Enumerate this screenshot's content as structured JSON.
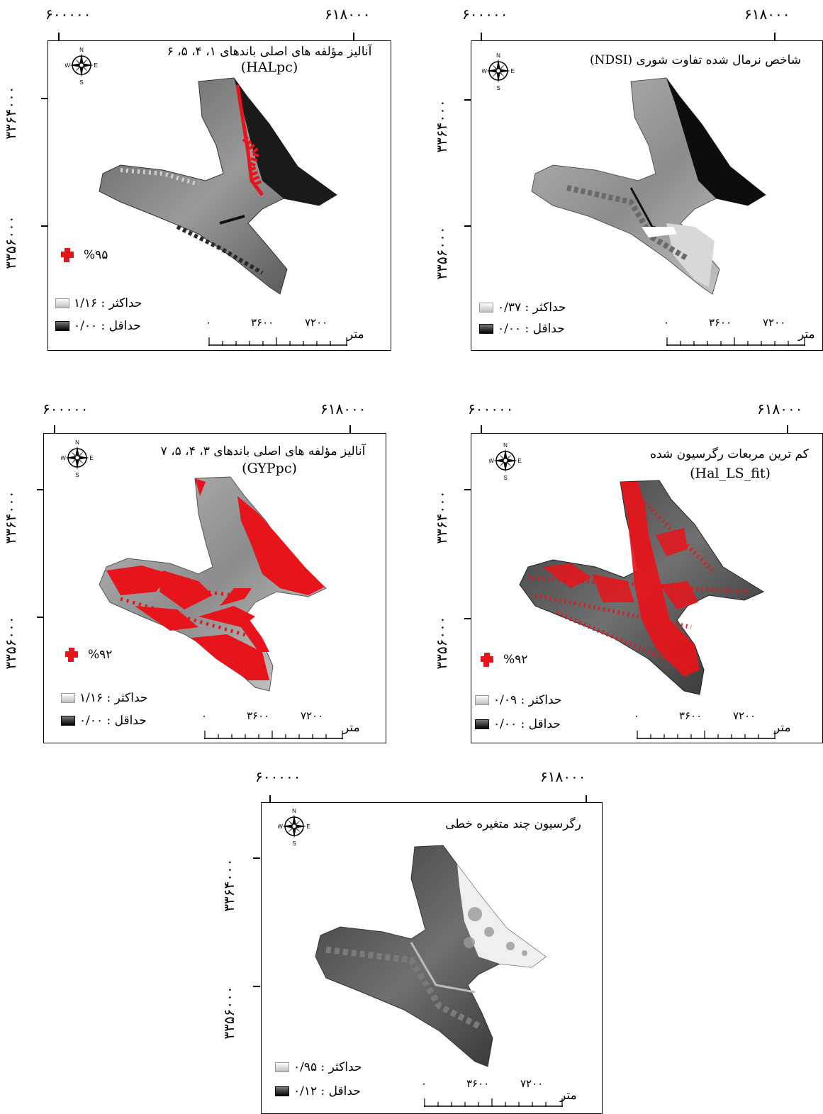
{
  "axis_labels": {
    "x_left": "۶۰۰۰۰۰",
    "x_right": "۶۱۸۰۰۰",
    "y_top": "۳۳۶۴۰۰۰",
    "y_bottom": "۳۳۵۶۰۰۰"
  },
  "compass": {
    "n": "N",
    "s": "S",
    "e": "E",
    "w": "W"
  },
  "scale": {
    "zero": "۰",
    "mid": "۳۶۰۰",
    "end": "۷۲۰۰",
    "unit": "متر"
  },
  "colors": {
    "hotspot": "#e8141b",
    "frame": "#000000"
  },
  "panels": [
    {
      "id": "halpc",
      "title": "آنالیز مؤلفه های اصلی باندهای ۱، ۴، ۵، ۶",
      "subtitle": "(HALpc)",
      "hotspot_label": "%۹۵",
      "legend_max": "حداکثر : ۱/۱۶",
      "legend_min": "حداقل : ۰/۰۰"
    },
    {
      "id": "ndsi",
      "title": "شاخص نرمال شده تفاوت شوری (NDSI)",
      "subtitle": "",
      "hotspot_label": "",
      "legend_max": "حداکثر : ۰/۳۷",
      "legend_min": "حداقل : ۰/۰۰"
    },
    {
      "id": "gyppc",
      "title": "آنالیز مؤلفه های اصلی باندهای ۳، ۴، ۵، ۷",
      "subtitle": "(GYPpc)",
      "hotspot_label": "%۹۲",
      "legend_max": "حداکثر : ۱/۱۶",
      "legend_min": "حداقل : ۰/۰۰"
    },
    {
      "id": "hal_ls_fit",
      "title": "کم ترین مربعات رگرسیون شده",
      "subtitle": "(Hal_LS_fit)",
      "hotspot_label": "%۹۲",
      "legend_max": "حداکثر : ۰/۰۹",
      "legend_min": "حداقل : ۰/۰۰"
    },
    {
      "id": "mlr",
      "title": "رگرسیون چند متغیره خطی",
      "subtitle": "",
      "hotspot_label": "",
      "legend_max": "حداکثر : ۰/۹۵",
      "legend_min": "حداقل : ۰/۱۲"
    }
  ]
}
